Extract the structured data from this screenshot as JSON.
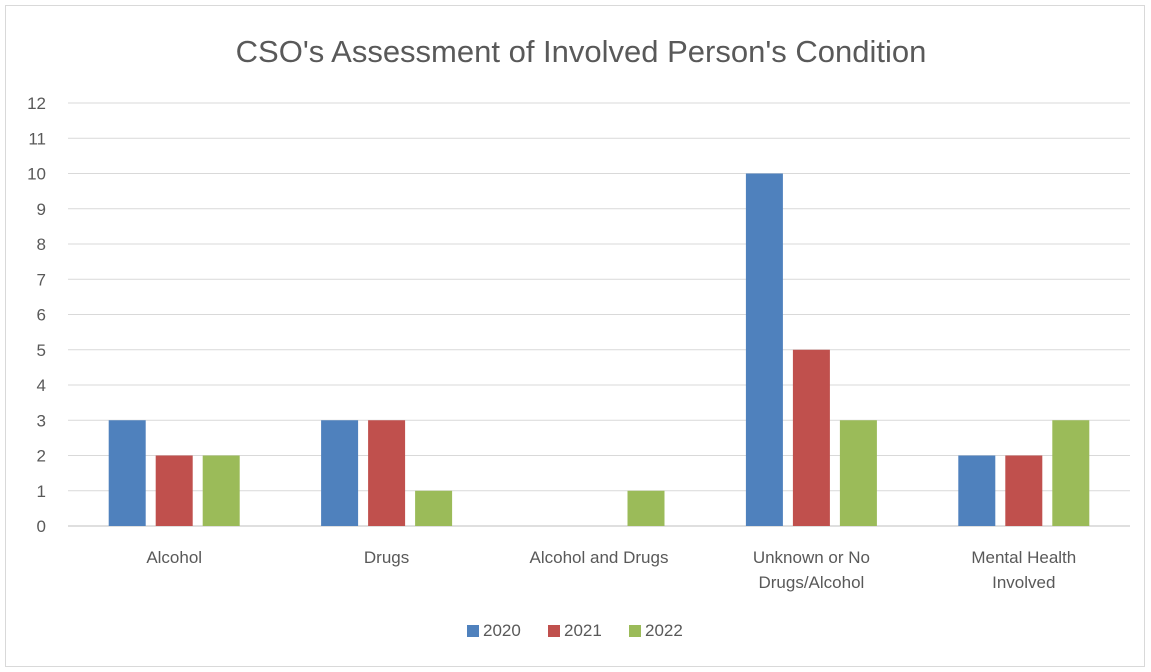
{
  "chart_data": {
    "type": "bar",
    "title": "CSO's Assessment of Involved Person's Condition",
    "xlabel": "",
    "ylabel": "",
    "ylim": [
      0,
      12
    ],
    "yticks": [
      0,
      1,
      2,
      3,
      4,
      5,
      6,
      7,
      8,
      9,
      10,
      11,
      12
    ],
    "grid": true,
    "legend": "bottom",
    "categories": [
      [
        "Alcohol"
      ],
      [
        "Drugs"
      ],
      [
        "Alcohol and Drugs"
      ],
      [
        "Unknown or No",
        "Drugs/Alcohol"
      ],
      [
        "Mental Health",
        "Involved"
      ]
    ],
    "series": [
      {
        "name": "2020",
        "color": "#4f81bd",
        "values": [
          3,
          3,
          0,
          10,
          2
        ]
      },
      {
        "name": "2021",
        "color": "#c0504d",
        "values": [
          2,
          3,
          0,
          5,
          2
        ]
      },
      {
        "name": "2022",
        "color": "#9bbb59",
        "values": [
          2,
          1,
          1,
          3,
          3
        ]
      }
    ]
  }
}
